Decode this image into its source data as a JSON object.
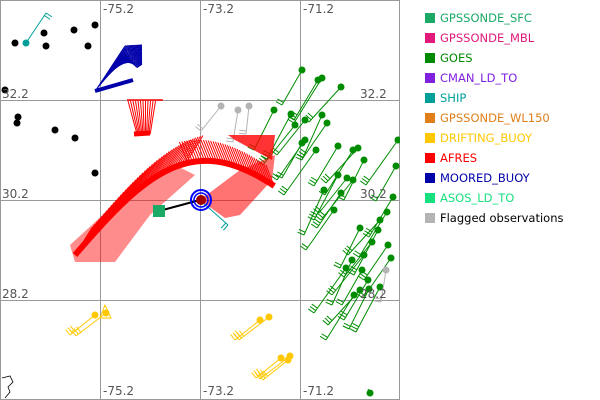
{
  "map": {
    "lon_labels": [
      "-75.2",
      "-73.2",
      "-71.2"
    ],
    "lat_labels": [
      "32.2",
      "30.2",
      "28.2"
    ]
  },
  "legend": [
    {
      "label": "GPSSONDE_SFC",
      "color": "#1aaa66"
    },
    {
      "label": "GPSSONDE_MBL",
      "color": "#e0197a"
    },
    {
      "label": "GOES",
      "color": "#008c00"
    },
    {
      "label": "CMAN_LD_TO",
      "color": "#8020e0"
    },
    {
      "label": "SHIP",
      "color": "#009f9a"
    },
    {
      "label": "GPSSONDE_WL150",
      "color": "#e07f1a"
    },
    {
      "label": "DRIFTING_BUOY",
      "color": "#ffc800"
    },
    {
      "label": "AFRES",
      "color": "#ff0000"
    },
    {
      "label": "MOORED_BUOY",
      "color": "#0000aa"
    },
    {
      "label": "ASOS_LD_TO",
      "color": "#17e07f"
    },
    {
      "label": "Flagged observations",
      "color": "#b4b4b4",
      "text_color": "#000000"
    }
  ]
}
